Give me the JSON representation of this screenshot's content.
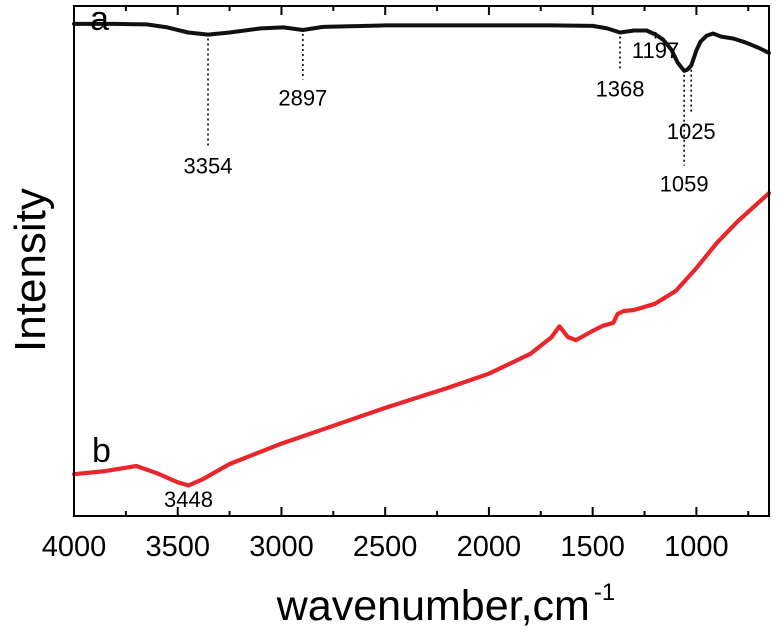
{
  "chart_data": {
    "type": "line",
    "title": "",
    "xlabel": "wavenumber,cm",
    "xlabel_superscript": "-1",
    "ylabel": "Intensity",
    "xlim": [
      4000,
      650
    ],
    "x_reversed": true,
    "y_ticks_shown": false,
    "grid": false,
    "x_ticks": [
      4000,
      3500,
      3000,
      2500,
      2000,
      1500,
      1000
    ],
    "x_tick_labels": [
      "4000",
      "3500",
      "3000",
      "2500",
      "2000",
      "1500",
      "1000"
    ],
    "ylim": [
      0,
      100
    ],
    "series": [
      {
        "name": "a",
        "color": "#111111",
        "x": [
          4000,
          3800,
          3650,
          3550,
          3450,
          3354,
          3250,
          3100,
          2990,
          2897,
          2800,
          2500,
          2000,
          1700,
          1500,
          1430,
          1368,
          1300,
          1240,
          1197,
          1160,
          1120,
          1090,
          1059,
          1045,
          1025,
          1000,
          980,
          950,
          920,
          880,
          820,
          760,
          700,
          650
        ],
        "values": [
          96.5,
          96.5,
          96.4,
          95.8,
          94.8,
          94.4,
          94.8,
          95.6,
          95.8,
          95.3,
          95.9,
          96.2,
          96.2,
          96.2,
          96.1,
          95.6,
          94.8,
          95.2,
          95.2,
          94.4,
          93.4,
          91.4,
          88.9,
          87.3,
          87.5,
          88.3,
          91.3,
          93.0,
          94.2,
          94.6,
          94.0,
          93.6,
          92.8,
          91.8,
          90.8
        ]
      },
      {
        "name": "b",
        "color": "#e8262c",
        "x": [
          4000,
          3850,
          3700,
          3600,
          3500,
          3448,
          3380,
          3250,
          3000,
          2700,
          2500,
          2200,
          2000,
          1800,
          1700,
          1660,
          1620,
          1580,
          1500,
          1450,
          1400,
          1380,
          1350,
          1300,
          1200,
          1100,
          1000,
          900,
          800,
          700,
          650
        ],
        "values": [
          8.2,
          8.8,
          9.8,
          8.4,
          6.6,
          6.0,
          7.2,
          10.2,
          14.2,
          18.4,
          21.2,
          25.1,
          27.9,
          31.8,
          35.0,
          37.2,
          35.1,
          34.5,
          36.3,
          37.3,
          37.9,
          39.6,
          40.2,
          40.4,
          41.6,
          44.1,
          48.6,
          53.6,
          57.8,
          61.5,
          63.3
        ]
      }
    ],
    "series_labels": [
      "a",
      "b"
    ],
    "annotations": [
      {
        "text": "3354",
        "series": "a",
        "x": 3354,
        "label_y": 67.2
      },
      {
        "text": "2897",
        "series": "a",
        "x": 2897,
        "label_y": 80.5
      },
      {
        "text": "1368",
        "series": "a",
        "x": 1368,
        "label_y": 82.3
      },
      {
        "text": "1197",
        "series": "a",
        "x": 1197,
        "label_y": 89.8
      },
      {
        "text": "1059",
        "series": "a",
        "x": 1059,
        "label_y": 63.6
      },
      {
        "text": "1025",
        "series": "a",
        "x": 1025,
        "label_y": 73.9
      },
      {
        "text": "3448",
        "series": "b",
        "x": 3448,
        "label_y": 1.8
      }
    ]
  }
}
